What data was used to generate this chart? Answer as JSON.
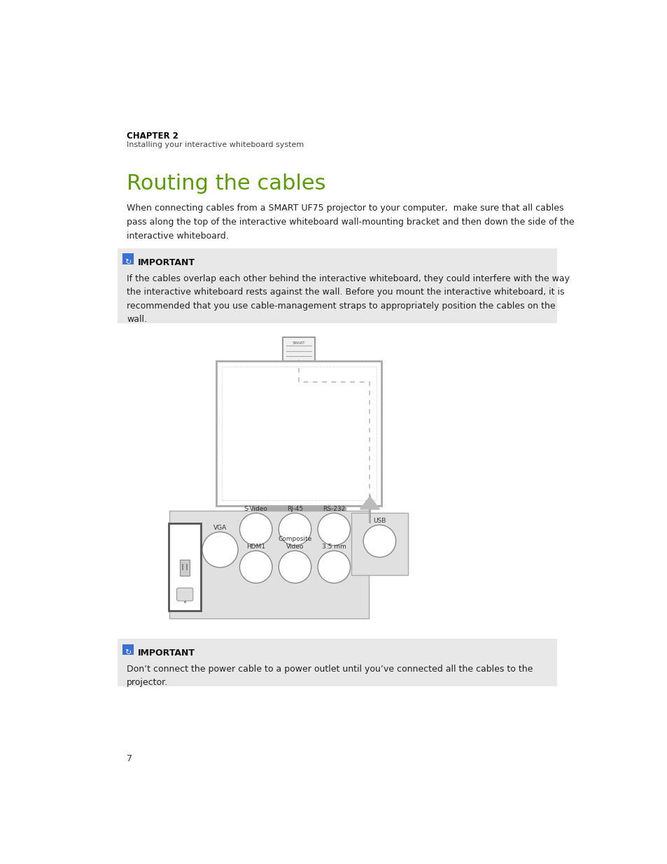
{
  "page_bg": "#ffffff",
  "chapter_label": "CHAPTER 2",
  "chapter_sub": "Installing your interactive whiteboard system",
  "title": "Routing the cables",
  "title_color": "#5b9a08",
  "body_text1": "When connecting cables from a SMART UF75 projector to your computer,  make sure that all cables\npass along the top of the interactive whiteboard wall-mounting bracket and then down the side of the\ninteractive whiteboard.",
  "important_bg": "#e8e8e8",
  "important_icon_color": "#3a6fd8",
  "important_label": "IMPORTANT",
  "important_text1": "If the cables overlap each other behind the interactive whiteboard, they could interfere with the way\nthe interactive whiteboard rests against the wall. Before you mount the interactive whiteboard, it is\nrecommended that you use cable-management straps to appropriately position the cables on the\nwall.",
  "important_text2": "Don’t connect the power cable to a power outlet until you’ve connected all the cables to the\nprojector.",
  "page_number": "7",
  "diagram_bg": "#e0e0e0"
}
